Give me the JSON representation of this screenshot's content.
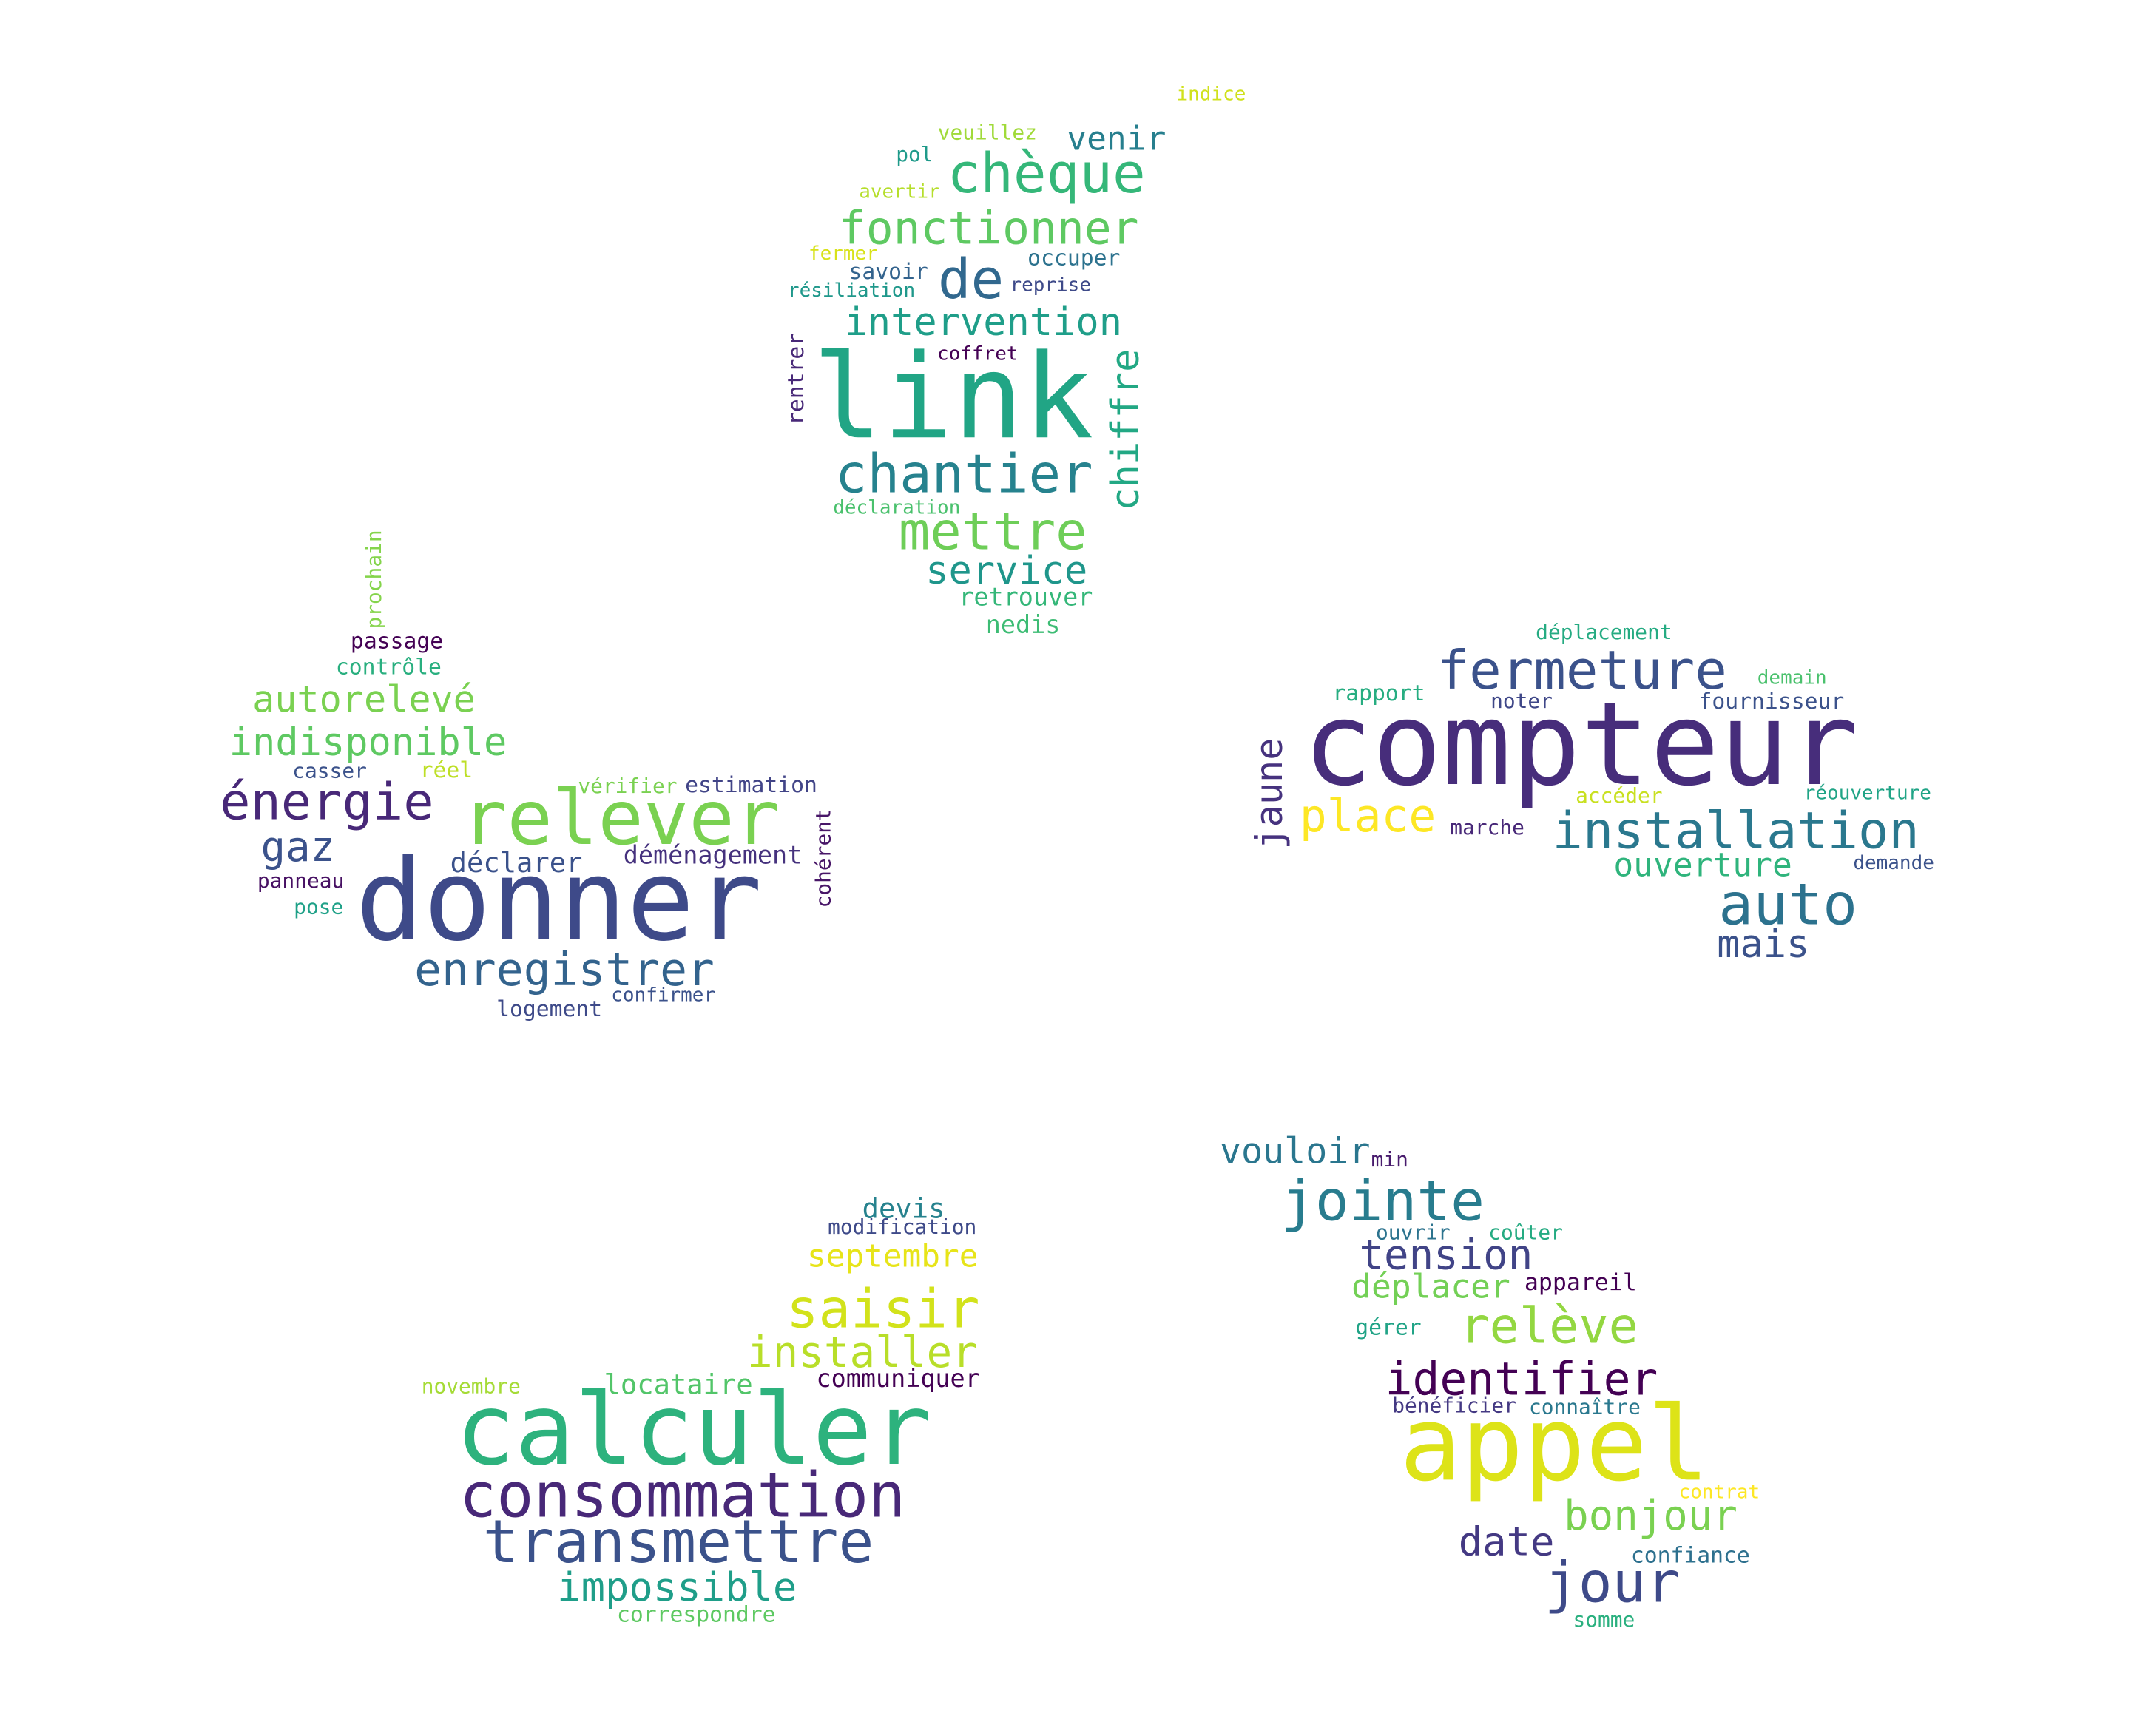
{
  "clouds": [
    {
      "name": "cloud-top",
      "words": [
        {
          "text": "link",
          "color": "#21a585"
        },
        {
          "text": "chèque",
          "color": "#35b779"
        },
        {
          "text": "fonctionner",
          "color": "#5ec962"
        },
        {
          "text": "de",
          "color": "#31688e"
        },
        {
          "text": "intervention",
          "color": "#1f9e89"
        },
        {
          "text": "chantier",
          "color": "#26828e"
        },
        {
          "text": "mettre",
          "color": "#6ece58"
        },
        {
          "text": "service",
          "color": "#1f968b"
        },
        {
          "text": "chiffre",
          "color": "#22a884"
        },
        {
          "text": "venir",
          "color": "#277f8e"
        },
        {
          "text": "occuper",
          "color": "#2c728e"
        },
        {
          "text": "retrouver",
          "color": "#35b779"
        },
        {
          "text": "nedis",
          "color": "#3dbc74"
        },
        {
          "text": "indice",
          "color": "#d0e11c"
        },
        {
          "text": "veuillez",
          "color": "#a0da39"
        },
        {
          "text": "pol",
          "color": "#1f9a8a"
        },
        {
          "text": "avertir",
          "color": "#b5de2b"
        },
        {
          "text": "fermer",
          "color": "#d8e219"
        },
        {
          "text": "savoir",
          "color": "#33638d"
        },
        {
          "text": "résiliation",
          "color": "#1f988b"
        },
        {
          "text": "reprise",
          "color": "#3e4a89"
        },
        {
          "text": "coffret",
          "color": "#440154"
        },
        {
          "text": "rentrer",
          "color": "#482878"
        },
        {
          "text": "déclaration",
          "color": "#4ac16d"
        }
      ]
    },
    {
      "name": "cloud-left",
      "words": [
        {
          "text": "donner",
          "color": "#3e4a89"
        },
        {
          "text": "relever",
          "color": "#7ad151"
        },
        {
          "text": "énergie",
          "color": "#482878"
        },
        {
          "text": "indisponible",
          "color": "#5ec962"
        },
        {
          "text": "autorelevé",
          "color": "#7ad151"
        },
        {
          "text": "enregistrer",
          "color": "#33638d"
        },
        {
          "text": "gaz",
          "color": "#3b528b"
        },
        {
          "text": "déclarer",
          "color": "#3b528b"
        },
        {
          "text": "déménagement",
          "color": "#46327e"
        },
        {
          "text": "estimation",
          "color": "#414487"
        },
        {
          "text": "vérifier",
          "color": "#7ad151"
        },
        {
          "text": "cohérent",
          "color": "#481668"
        },
        {
          "text": "prochain",
          "color": "#84d44b"
        },
        {
          "text": "passage",
          "color": "#440154"
        },
        {
          "text": "contrôle",
          "color": "#29af7f"
        },
        {
          "text": "casser",
          "color": "#3b528b"
        },
        {
          "text": "réel",
          "color": "#bddf26"
        },
        {
          "text": "panneau",
          "color": "#471063"
        },
        {
          "text": "pose",
          "color": "#1fa188"
        },
        {
          "text": "logement",
          "color": "#3e4a89"
        },
        {
          "text": "confirmer",
          "color": "#3b528b"
        }
      ]
    },
    {
      "name": "cloud-right",
      "words": [
        {
          "text": "compteur",
          "color": "#472d7b"
        },
        {
          "text": "fermeture",
          "color": "#3b528b"
        },
        {
          "text": "installation",
          "color": "#2a788e"
        },
        {
          "text": "auto",
          "color": "#2c728e"
        },
        {
          "text": "place",
          "color": "#fde725"
        },
        {
          "text": "jaune",
          "color": "#46327e"
        },
        {
          "text": "ouverture",
          "color": "#2fb47c"
        },
        {
          "text": "mais",
          "color": "#3b528b"
        },
        {
          "text": "déplacement",
          "color": "#25ab82"
        },
        {
          "text": "rapport",
          "color": "#27ad81"
        },
        {
          "text": "noter",
          "color": "#3f4788"
        },
        {
          "text": "demain",
          "color": "#4ac16d"
        },
        {
          "text": "fournisseur",
          "color": "#3b528b"
        },
        {
          "text": "accéder",
          "color": "#c8e020"
        },
        {
          "text": "réouverture",
          "color": "#20a486"
        },
        {
          "text": "marche",
          "color": "#482878"
        },
        {
          "text": "demande",
          "color": "#3b528b"
        }
      ]
    },
    {
      "name": "cloud-bottom-left",
      "words": [
        {
          "text": "calculer",
          "color": "#2db27d"
        },
        {
          "text": "consommation",
          "color": "#482878"
        },
        {
          "text": "transmettre",
          "color": "#3b528b"
        },
        {
          "text": "impossible",
          "color": "#1f9e89"
        },
        {
          "text": "saisir",
          "color": "#d2e21b"
        },
        {
          "text": "installer",
          "color": "#b8de29"
        },
        {
          "text": "septembre",
          "color": "#e7e419"
        },
        {
          "text": "devis",
          "color": "#26828e"
        },
        {
          "text": "modification",
          "color": "#3e4a89"
        },
        {
          "text": "locataire",
          "color": "#52c569"
        },
        {
          "text": "communiquer",
          "color": "#440154"
        },
        {
          "text": "novembre",
          "color": "#a5db36"
        },
        {
          "text": "correspondre",
          "color": "#5ec962"
        }
      ]
    },
    {
      "name": "cloud-bottom-right",
      "words": [
        {
          "text": "appel",
          "color": "#dde318"
        },
        {
          "text": "jointe",
          "color": "#287c8e"
        },
        {
          "text": "vouloir",
          "color": "#2a768e"
        },
        {
          "text": "min",
          "color": "#481b6d"
        },
        {
          "text": "tension",
          "color": "#414487"
        },
        {
          "text": "ouvrir",
          "color": "#2c738e"
        },
        {
          "text": "coûter",
          "color": "#25ab82"
        },
        {
          "text": "déplacer",
          "color": "#73d056"
        },
        {
          "text": "appareil",
          "color": "#440154"
        },
        {
          "text": "relève",
          "color": "#93d741"
        },
        {
          "text": "gérer",
          "color": "#20a386"
        },
        {
          "text": "identifier",
          "color": "#440154"
        },
        {
          "text": "bénéficier",
          "color": "#443983"
        },
        {
          "text": "connaître",
          "color": "#2a788e"
        },
        {
          "text": "contrat",
          "color": "#fde725"
        },
        {
          "text": "bonjour",
          "color": "#7ad151"
        },
        {
          "text": "date",
          "color": "#443983"
        },
        {
          "text": "confiance",
          "color": "#2d708e"
        },
        {
          "text": "jour",
          "color": "#3e4a89"
        },
        {
          "text": "somme",
          "color": "#2ab07f"
        }
      ]
    }
  ]
}
